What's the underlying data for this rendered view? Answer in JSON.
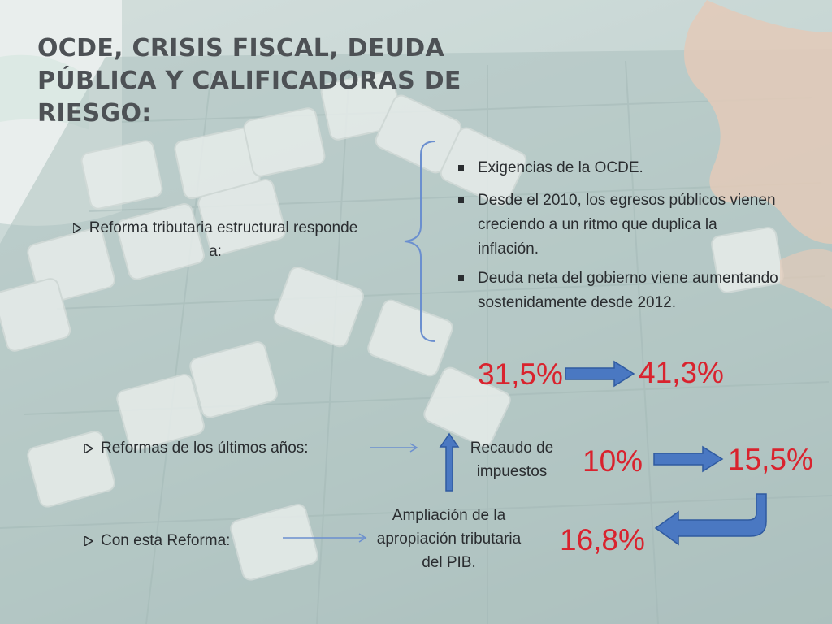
{
  "slide": {
    "title": "OCDE, CRISIS FISCAL, DEUDA PÚBLICA Y CALIFICADORAS DE RIESGO:",
    "reforma_tributaria": "Reforma tributaria estructural responde a:",
    "bullets": [
      "Exigencias de la OCDE.",
      "Desde el 2010, los egresos públicos vienen creciendo a un ritmo que duplica la inflación.",
      "Deuda neta del gobierno viene aumentando sostenidamente desde 2012."
    ],
    "deuda_from": "31,5%",
    "deuda_to": "41,3%",
    "reformas_anos": "Reformas de los últimos años:",
    "recaudo": "Recaudo de impuestos",
    "recaudo_from": "10%",
    "recaudo_to": "15,5%",
    "con_reforma": "Con esta Reforma:",
    "ampliacion": "Ampliación de la apropiación tributaria del PIB.",
    "final_pct": "16,8%"
  },
  "colors": {
    "title": "#4d5155",
    "text": "#2a2d30",
    "highlight": "#d9232e",
    "arrow_fill": "#4a78c2",
    "thin_arrow": "#6b8fcf"
  }
}
